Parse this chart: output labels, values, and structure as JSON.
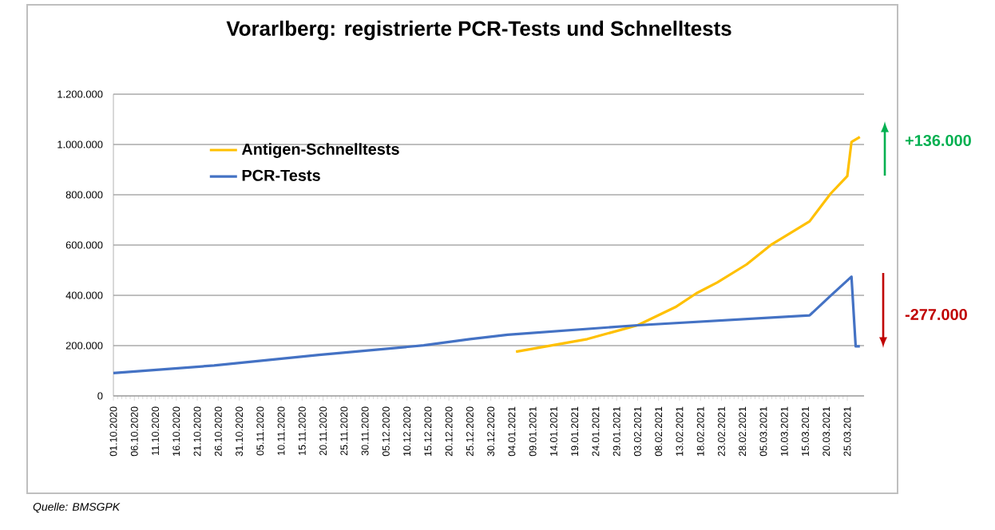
{
  "chart_data": {
    "type": "line",
    "title": "Vorarlberg: registrierte PCR-Tests und Schnelltests",
    "xlim": [
      "2020-10-01",
      "2021-03-29"
    ],
    "xticks": [
      {
        "value": "2020-10-01",
        "label": "01.10.2020"
      },
      {
        "value": "2020-10-06",
        "label": "06.10.2020"
      },
      {
        "value": "2020-10-11",
        "label": "11.10.2020"
      },
      {
        "value": "2020-10-16",
        "label": "16.10.2020"
      },
      {
        "value": "2020-10-21",
        "label": "21.10.2020"
      },
      {
        "value": "2020-10-26",
        "label": "26.10.2020"
      },
      {
        "value": "2020-10-31",
        "label": "31.10.2020"
      },
      {
        "value": "2020-11-05",
        "label": "05.11.2020"
      },
      {
        "value": "2020-11-10",
        "label": "10.11.2020"
      },
      {
        "value": "2020-11-15",
        "label": "15.11.2020"
      },
      {
        "value": "2020-11-20",
        "label": "20.11.2020"
      },
      {
        "value": "2020-11-25",
        "label": "25.11.2020"
      },
      {
        "value": "2020-11-30",
        "label": "30.11.2020"
      },
      {
        "value": "2020-12-05",
        "label": "05.12.2020"
      },
      {
        "value": "2020-12-10",
        "label": "10.12.2020"
      },
      {
        "value": "2020-12-15",
        "label": "15.12.2020"
      },
      {
        "value": "2020-12-20",
        "label": "20.12.2020"
      },
      {
        "value": "2020-12-25",
        "label": "25.12.2020"
      },
      {
        "value": "2020-12-30",
        "label": "30.12.2020"
      },
      {
        "value": "2021-01-04",
        "label": "04.01.2021"
      },
      {
        "value": "2021-01-09",
        "label": "09.01.2021"
      },
      {
        "value": "2021-01-14",
        "label": "14.01.2021"
      },
      {
        "value": "2021-01-19",
        "label": "19.01.2021"
      },
      {
        "value": "2021-01-24",
        "label": "24.01.2021"
      },
      {
        "value": "2021-01-29",
        "label": "29.01.2021"
      },
      {
        "value": "2021-02-03",
        "label": "03.02.2021"
      },
      {
        "value": "2021-02-08",
        "label": "08.02.2021"
      },
      {
        "value": "2021-02-13",
        "label": "13.02.2021"
      },
      {
        "value": "2021-02-18",
        "label": "18.02.2021"
      },
      {
        "value": "2021-02-23",
        "label": "23.02.2021"
      },
      {
        "value": "2021-02-28",
        "label": "28.02.2021"
      },
      {
        "value": "2021-03-05",
        "label": "05.03.2021"
      },
      {
        "value": "2021-03-10",
        "label": "10.03.2021"
      },
      {
        "value": "2021-03-15",
        "label": "15.03.2021"
      },
      {
        "value": "2021-03-20",
        "label": "20.03.2021"
      },
      {
        "value": "2021-03-25",
        "label": "25.03.2021"
      }
    ],
    "ylim": [
      0,
      1200000
    ],
    "yticks": [
      0,
      {
        "value": 200000,
        "label": "200.000"
      },
      {
        "value": 400000,
        "label": "400.000"
      },
      {
        "value": 600000,
        "label": "600.000"
      },
      {
        "value": 800000,
        "label": "800.000"
      },
      {
        "value": 1000000,
        "label": "1.000.000"
      },
      {
        "value": 1200000,
        "label": "1.200.000"
      }
    ],
    "grid": "y",
    "legend": "top left",
    "marker": "none",
    "line_style": "solid",
    "series": [
      {
        "name": "Antigen-Schnelltests",
        "color": "#ffc000",
        "x": [
          "2021-01-05",
          "2021-01-22",
          "2021-02-03",
          "2021-02-12",
          "2021-02-17",
          "2021-02-22",
          "2021-03-01",
          "2021-03-07",
          "2021-03-16",
          "2021-03-21",
          "2021-03-25",
          "2021-03-26",
          "2021-03-28"
        ],
        "values": [
          176000,
          226000,
          281000,
          353000,
          408000,
          451000,
          523000,
          603000,
          694000,
          804000,
          874000,
          1010000,
          1030000
        ]
      },
      {
        "name": "PCR-Tests",
        "color": "#4472c4",
        "x": [
          "2020-10-01",
          "2020-10-25",
          "2020-11-19",
          "2020-12-14",
          "2020-12-25",
          "2021-01-03",
          "2021-02-03",
          "2021-03-16",
          "2021-03-21",
          "2021-03-26",
          "2021-03-27",
          "2021-03-28"
        ],
        "values": [
          91000,
          121000,
          163000,
          201000,
          226000,
          243000,
          281000,
          320000,
          398000,
          474000,
          197000,
          197000
        ]
      }
    ],
    "annotations": [
      "+136.000",
      "-277.000",
      "Quelle: BMSGPK"
    ]
  }
}
